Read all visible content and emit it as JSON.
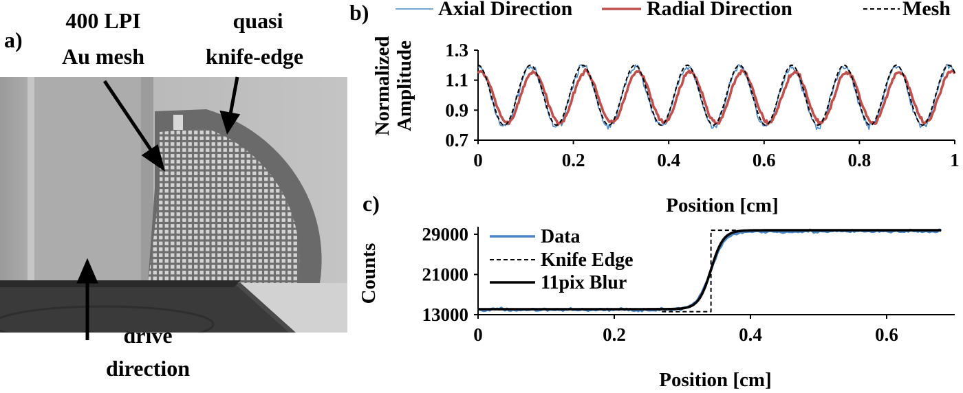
{
  "panel_a": {
    "label": "a)",
    "annotations": {
      "mesh_line1": "400 LPI",
      "mesh_line2": "Au mesh",
      "edge_line1": "quasi",
      "edge_line2": "knife-edge",
      "drive_line1": "drive",
      "drive_line2": "direction"
    }
  },
  "chart_data": [
    {
      "id": "b",
      "type": "line",
      "panel_label": "b)",
      "xlabel": "Position  [cm]",
      "ylabel_line1": "Normalized",
      "ylabel_line2": "Amplitude",
      "xlim": [
        0,
        1
      ],
      "ylim": [
        0.7,
        1.3
      ],
      "xticks": [
        0,
        0.2,
        0.4,
        0.6,
        0.8,
        1
      ],
      "xtick_labels": [
        "0",
        "0.2",
        "0.4",
        "0.6",
        "0.8",
        "1"
      ],
      "yticks": [
        0.7,
        0.9,
        1.1,
        1.3
      ],
      "ytick_labels": [
        "0.7",
        "0.9",
        "1.1",
        "1.3"
      ],
      "legend_position": "top",
      "series": [
        {
          "name": "Axial Direction",
          "color": "#4a86c8",
          "style": "solid-thin",
          "model": {
            "kind": "sine",
            "period": 0.1097,
            "phase": 0.0,
            "mean": 0.99,
            "amplitude": 0.2,
            "noise": 0.035
          }
        },
        {
          "name": "Radial Direction",
          "color": "#c0504d",
          "style": "solid-thick",
          "model": {
            "kind": "sine",
            "period": 0.1097,
            "phase": 0.006,
            "mean": 0.985,
            "amplitude": 0.17,
            "noise": 0.02
          }
        },
        {
          "name": "Mesh",
          "color": "#000000",
          "style": "dashed",
          "model": {
            "kind": "sine",
            "period": 0.1097,
            "phase": 0.0,
            "mean": 1.0,
            "amplitude": 0.2,
            "noise": 0.0
          }
        }
      ]
    },
    {
      "id": "c",
      "type": "line",
      "panel_label": "c)",
      "xlabel": "Position  [cm]",
      "ylabel": "Counts",
      "xlim": [
        0,
        0.7
      ],
      "ylim": [
        13000,
        30500
      ],
      "xticks": [
        0,
        0.2,
        0.4,
        0.6
      ],
      "xtick_labels": [
        "0",
        "0.2",
        "0.4",
        "0.6"
      ],
      "yticks": [
        13000,
        21000,
        29000
      ],
      "ytick_labels": [
        "13000",
        "21000",
        "29000"
      ],
      "legend_position": "top-left",
      "series": [
        {
          "name": "Data",
          "color": "#4a86c8",
          "style": "solid-thick",
          "model": {
            "kind": "edge-noisy",
            "low": 14000,
            "high": 29600,
            "edge": 0.342,
            "width": 0.022,
            "noise": 250,
            "x_end": 0.68
          }
        },
        {
          "name": "Knife Edge",
          "color": "#000000",
          "style": "dashed",
          "model": {
            "kind": "step",
            "low": 13600,
            "high": 29800,
            "edge": 0.342,
            "x_start": 0.27,
            "x_end": 0.38
          }
        },
        {
          "name": "11pix Blur",
          "color": "#000000",
          "style": "solid-thick",
          "model": {
            "kind": "edge",
            "low": 14100,
            "high": 29800,
            "edge": 0.342,
            "width": 0.02,
            "x_end": 0.68
          }
        }
      ]
    }
  ]
}
